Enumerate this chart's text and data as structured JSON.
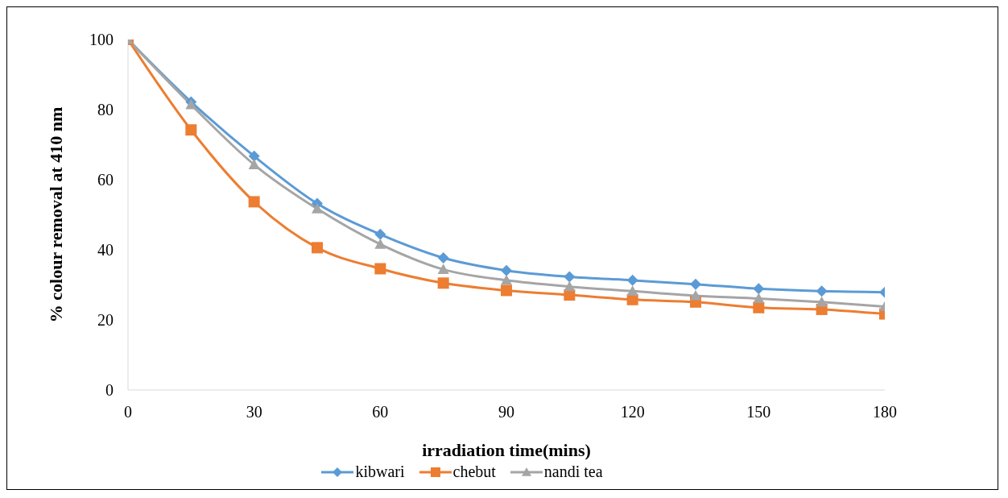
{
  "chart_data": {
    "type": "line",
    "xlabel": "irradiation time(mins)",
    "ylabel": "% colour removal at 410 nm",
    "x": [
      0,
      15,
      30,
      45,
      60,
      75,
      90,
      105,
      120,
      135,
      150,
      165,
      180
    ],
    "xlim": [
      0,
      180
    ],
    "xticks": [
      0,
      30,
      60,
      90,
      120,
      150,
      180
    ],
    "ylim": [
      0,
      100
    ],
    "yticks": [
      0,
      20,
      40,
      60,
      80,
      100
    ],
    "grid": false,
    "legend": "bottom",
    "line_style": "solid",
    "series": [
      {
        "name": "kibwari",
        "color": "#5b9bd5",
        "marker": "diamond",
        "values": [
          100,
          82.2,
          66.7,
          53.2,
          44.4,
          37.7,
          34.1,
          32.3,
          31.3,
          30.2,
          28.9,
          28.2,
          27.9
        ]
      },
      {
        "name": "chebut",
        "color": "#ed7d31",
        "marker": "square",
        "values": [
          100,
          74.2,
          53.7,
          40.6,
          34.6,
          30.5,
          28.4,
          27.1,
          25.8,
          25.1,
          23.5,
          23.0,
          21.7
        ]
      },
      {
        "name": "nandi tea",
        "color": "#a5a5a5",
        "marker": "triangle",
        "values": [
          100,
          81.4,
          64.3,
          51.7,
          41.6,
          34.4,
          31.3,
          29.5,
          28.2,
          26.9,
          26.1,
          25.1,
          23.8
        ]
      }
    ]
  }
}
